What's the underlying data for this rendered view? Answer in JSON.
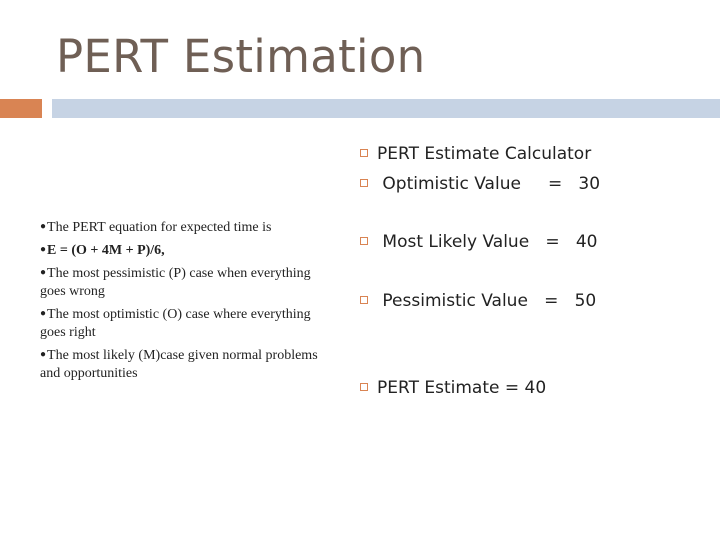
{
  "title": "PERT Estimation",
  "left_bullets": [
    "The PERT equation for expected time is",
    "E = (O + 4M + P)/6,",
    "The most pessimistic (P) case when everything goes wrong",
    "The most optimistic (O) case where everything goes right",
    "The most likely (M)case given normal problems and opportunities"
  ],
  "right_items": [
    "PERT Estimate Calculator",
    " Optimistic Value     =   30",
    " Most Likely Value   =   40",
    " Pessimistic Value   =   50",
    "PERT Estimate = 40"
  ],
  "colors": {
    "title": "#6f5f55",
    "accent": "#d98453",
    "rule": "#c6d3e4"
  }
}
